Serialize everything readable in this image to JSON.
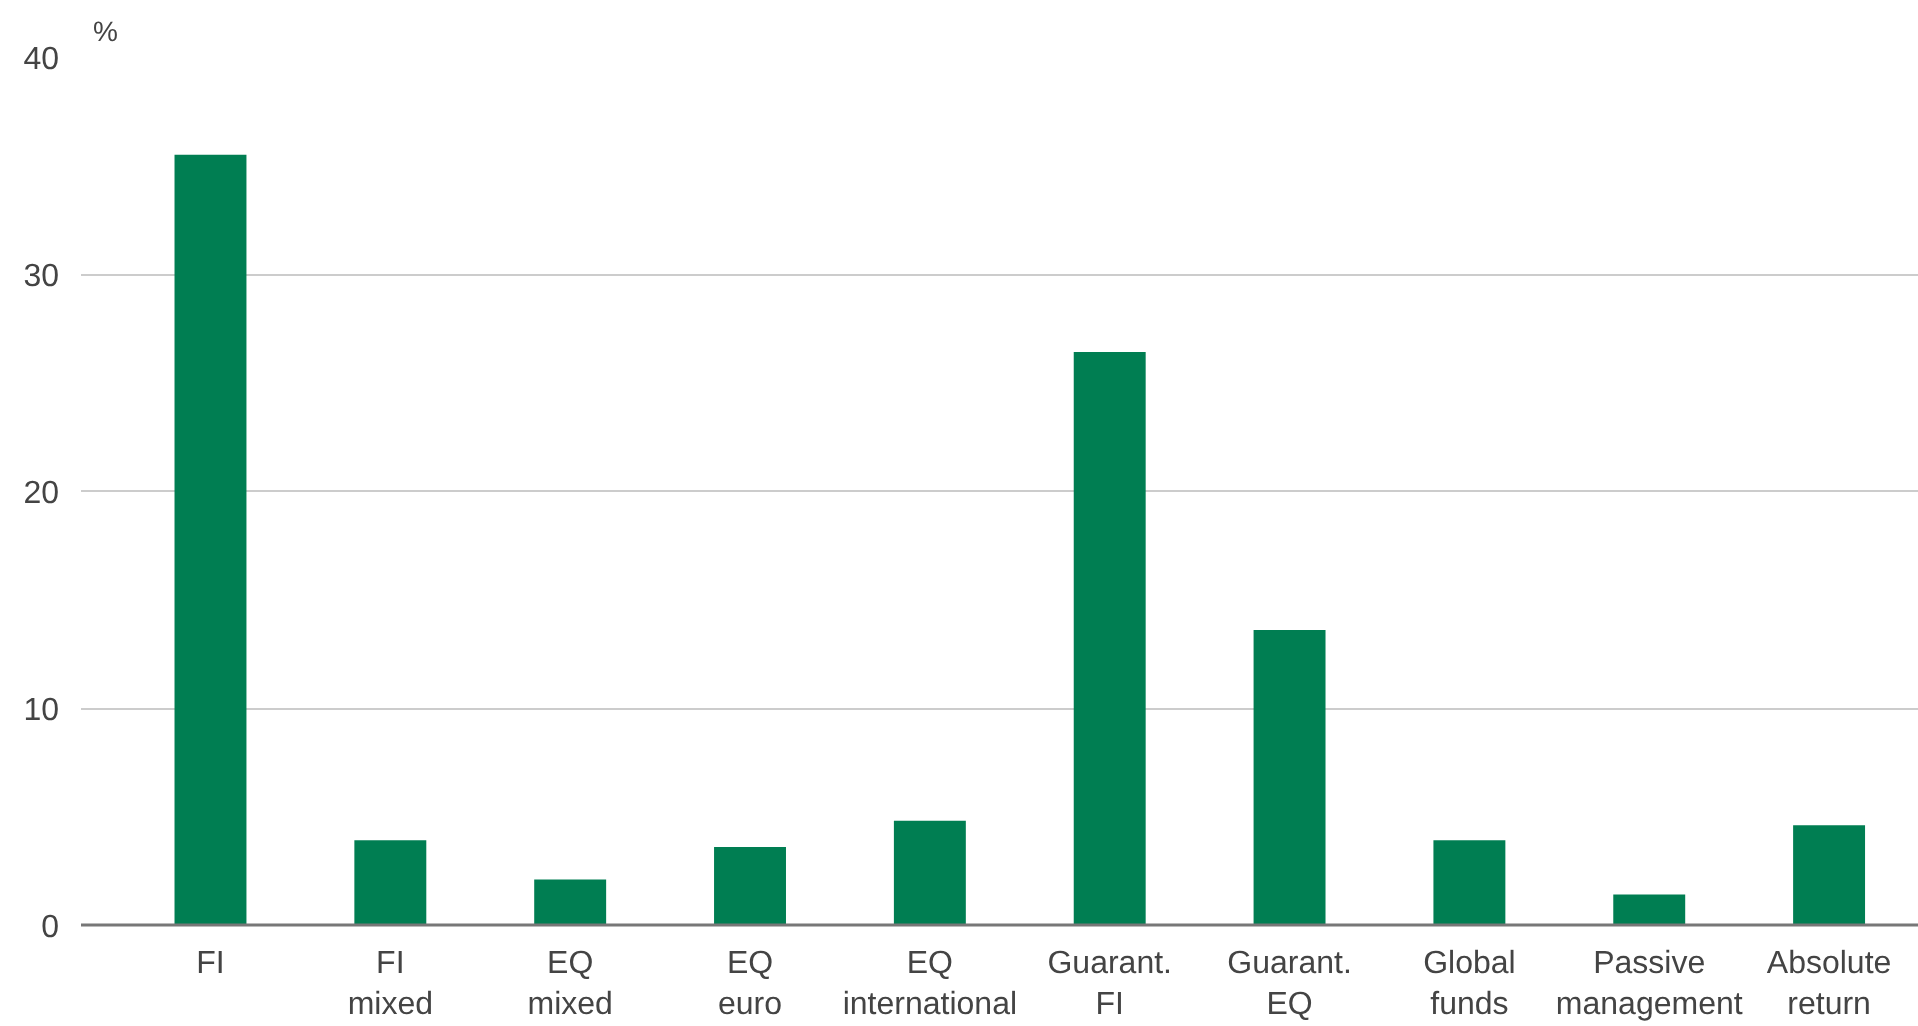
{
  "chart_data": {
    "type": "bar",
    "ylabel": "%",
    "categories": [
      "FI",
      "FI\nmixed",
      "EQ\nmixed",
      "EQ\neuro",
      "EQ\ninternational",
      "Guarant.\nFI",
      "Guarant.\nEQ",
      "Global\nfunds",
      "Passive\nmanagement",
      "Absolute\nreturn"
    ],
    "values": [
      35.5,
      3.9,
      2.1,
      3.6,
      4.8,
      26.4,
      13.6,
      3.9,
      1.4,
      4.6
    ],
    "color": "#007e52",
    "ylim": [
      0,
      40
    ],
    "yticks": [
      0,
      10,
      20,
      30,
      40
    ],
    "grid": "y"
  }
}
